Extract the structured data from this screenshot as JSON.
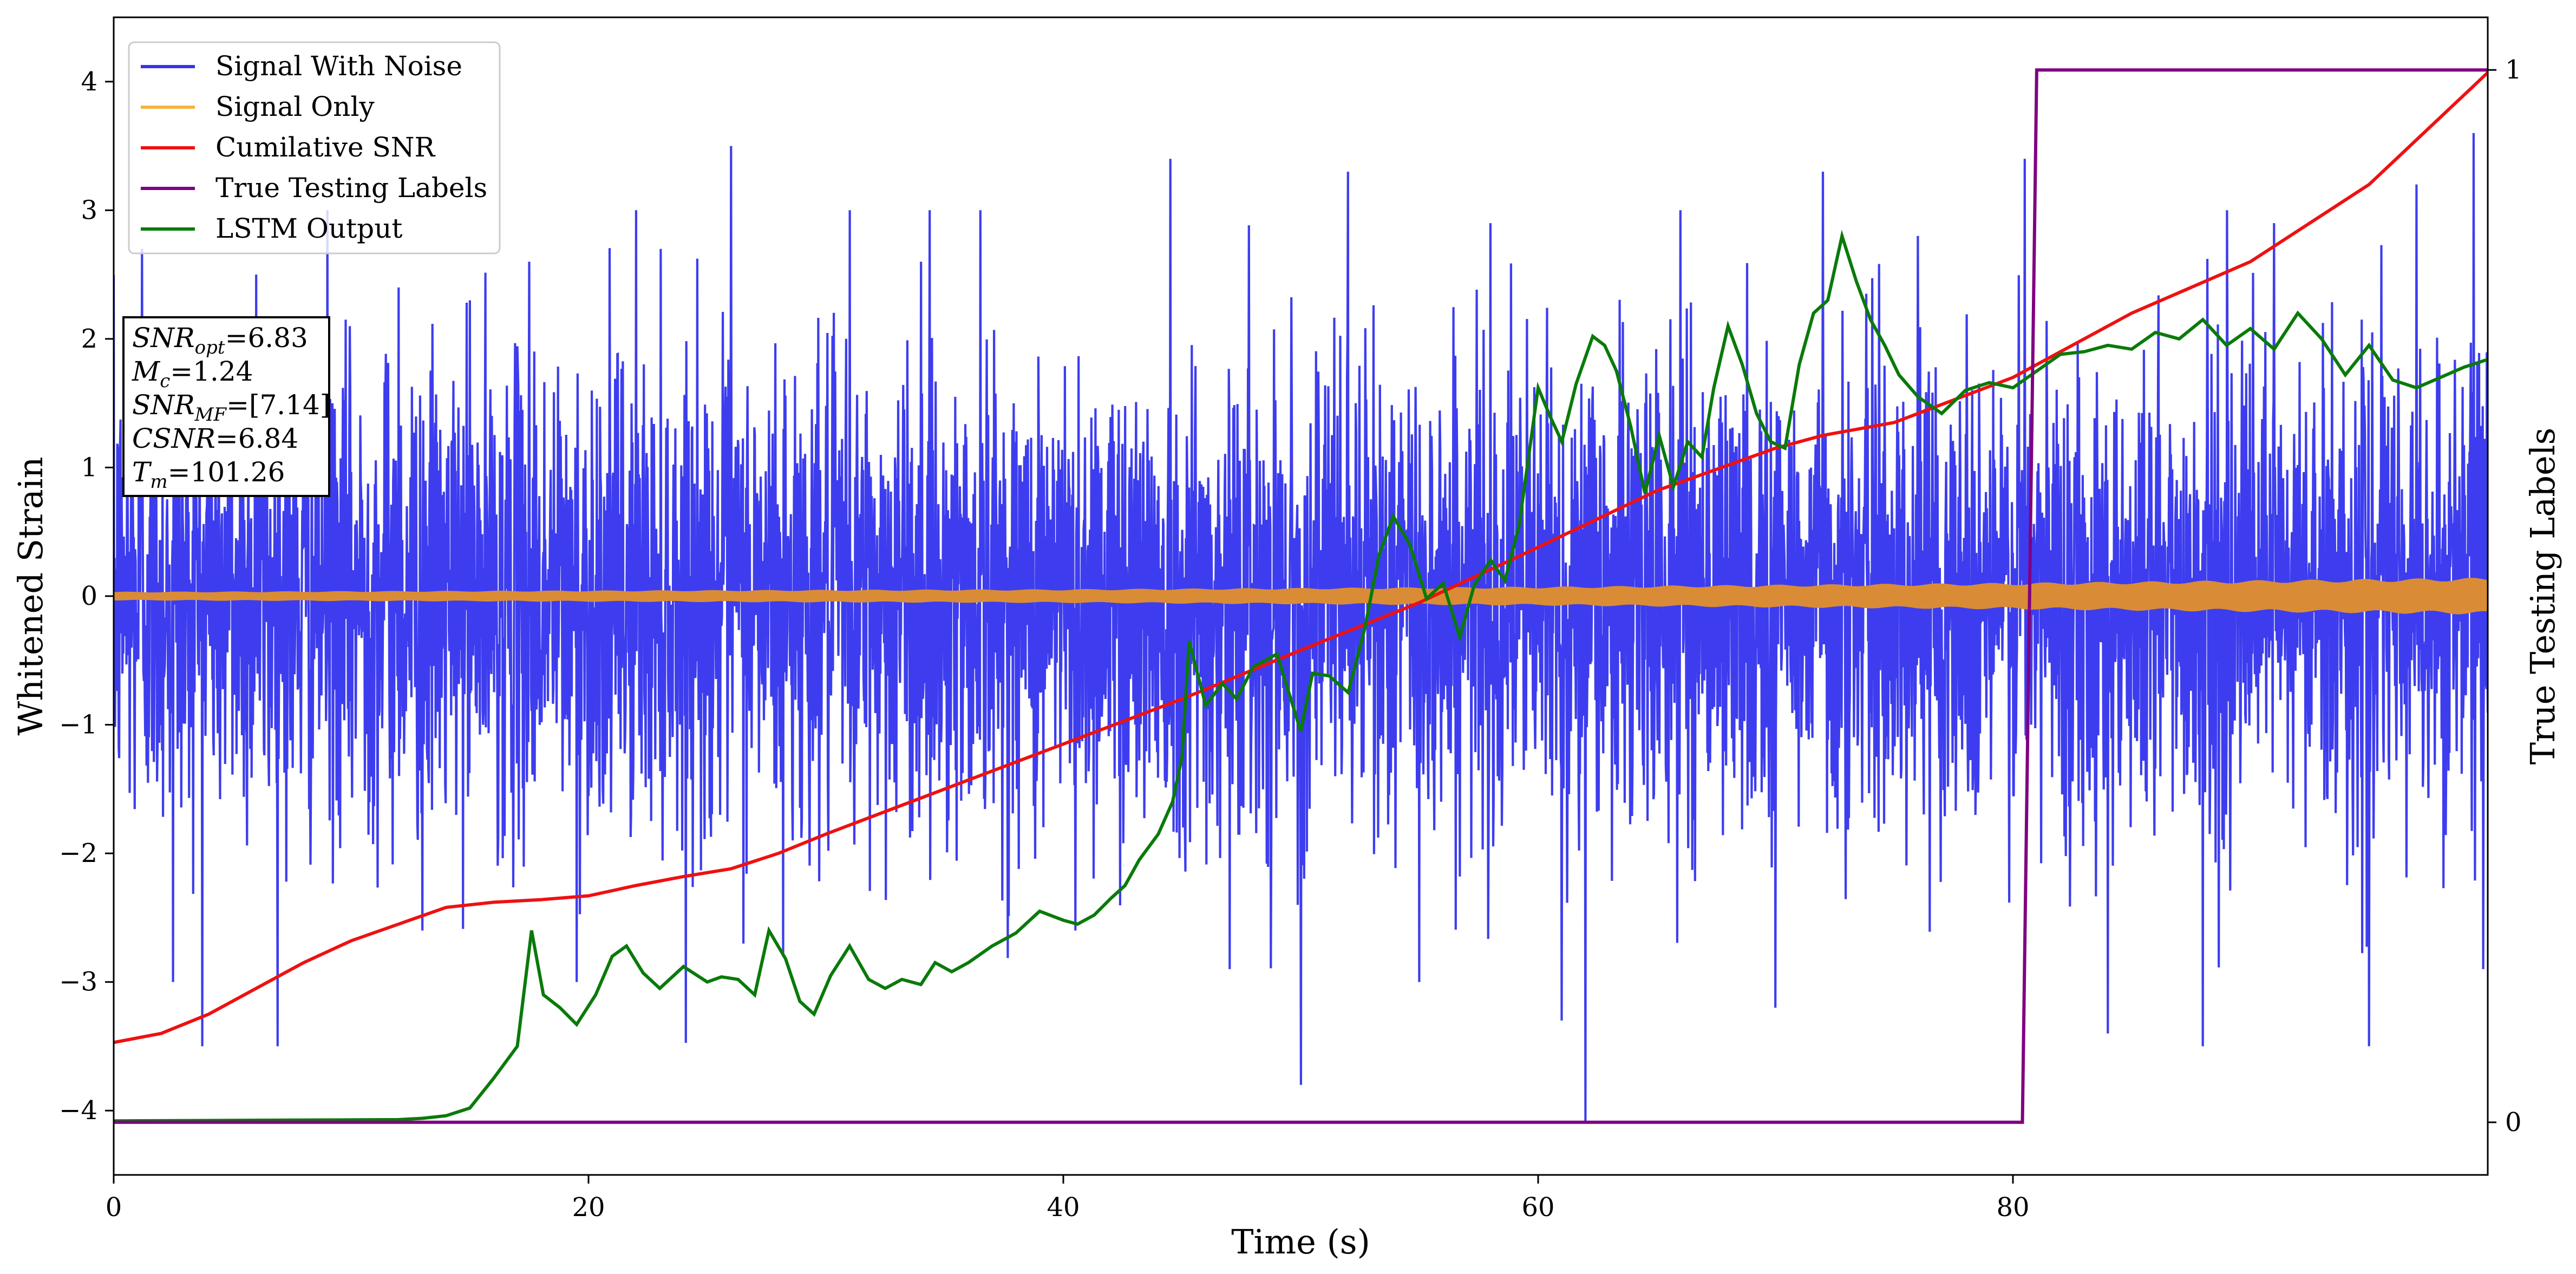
{
  "chart_data": {
    "type": "line",
    "xlabel": "Time (s)",
    "ylabel": "Whitened Strain",
    "y2label": "True Testing Labels",
    "xlim": [
      0,
      100
    ],
    "ylim": [
      -4.5,
      4.5
    ],
    "y2lim": [
      -0.05,
      1.05
    ],
    "grid": false,
    "legend_position": "top-left",
    "x_ticks": [
      "0",
      "20",
      "40",
      "60",
      "80"
    ],
    "x_tick_values": [
      0,
      20,
      40,
      60,
      80
    ],
    "y_ticks": [
      "−4",
      "−3",
      "−2",
      "−1",
      "0",
      "1",
      "2",
      "3",
      "4"
    ],
    "y_tick_values": [
      -4,
      -3,
      -2,
      -1,
      0,
      1,
      2,
      3,
      4
    ],
    "y2_ticks": [
      "0",
      "1"
    ],
    "y2_tick_values": [
      0,
      1
    ],
    "legend": [
      {
        "label": "Signal With Noise",
        "color": "#3333ee"
      },
      {
        "label": "Signal Only",
        "color": "#f5b342"
      },
      {
        "label": "Cumilative SNR",
        "color": "#ee1111"
      },
      {
        "label": "True Testing Labels",
        "color": "#800080"
      },
      {
        "label": "LSTM Output",
        "color": "#0a7a0a"
      }
    ],
    "info_box": [
      {
        "main": "SNR",
        "sub": "opt",
        "value": "=6.83"
      },
      {
        "main": "M",
        "sub": "c",
        "value": "=1.24"
      },
      {
        "main": "SNR",
        "sub": "MF",
        "value": "=[7.14]"
      },
      {
        "main": "CSNR",
        "sub": "",
        "value": "=6.84"
      },
      {
        "main": "T",
        "sub": "m",
        "value": "=101.26"
      }
    ],
    "series": [
      {
        "name": "Signal With Noise",
        "color": "#3333ee",
        "style": "noise",
        "x_range": [
          0,
          100
        ],
        "y_spread": 0.9,
        "y_extremes": [
          -4.1,
          3.6
        ],
        "spikes": [
          {
            "x": 1.2,
            "y": 2.7
          },
          {
            "x": 2.5,
            "y": -3.0
          },
          {
            "x": 6.0,
            "y": 2.5
          },
          {
            "x": 9.0,
            "y": 3.0
          },
          {
            "x": 12.0,
            "y": 2.4
          },
          {
            "x": 13.0,
            "y": -2.6
          },
          {
            "x": 15.0,
            "y": 2.3
          },
          {
            "x": 17.5,
            "y": 2.6
          },
          {
            "x": 19.5,
            "y": -3.0
          },
          {
            "x": 22.0,
            "y": 3.0
          },
          {
            "x": 26.0,
            "y": 3.5
          },
          {
            "x": 28.2,
            "y": -2.8
          },
          {
            "x": 31.0,
            "y": 3.0
          },
          {
            "x": 34.0,
            "y": 2.6
          },
          {
            "x": 36.5,
            "y": 3.0
          },
          {
            "x": 40.5,
            "y": -2.6
          },
          {
            "x": 44.5,
            "y": 3.4
          },
          {
            "x": 47.0,
            "y": -2.9
          },
          {
            "x": 50.0,
            "y": -3.8
          },
          {
            "x": 52.0,
            "y": 3.3
          },
          {
            "x": 55.0,
            "y": -3.0
          },
          {
            "x": 58.0,
            "y": 2.9
          },
          {
            "x": 61.0,
            "y": -3.3
          },
          {
            "x": 62.0,
            "y": -4.1
          },
          {
            "x": 66.0,
            "y": 3.0
          },
          {
            "x": 70.0,
            "y": -3.2
          },
          {
            "x": 72.0,
            "y": 3.3
          },
          {
            "x": 76.0,
            "y": 2.8
          },
          {
            "x": 80.5,
            "y": 3.4
          },
          {
            "x": 84.0,
            "y": -3.4
          },
          {
            "x": 88.0,
            "y": -3.5
          },
          {
            "x": 91.0,
            "y": 2.9
          },
          {
            "x": 95.0,
            "y": -3.5
          },
          {
            "x": 97.0,
            "y": 3.2
          },
          {
            "x": 99.4,
            "y": 3.6
          },
          {
            "x": 99.8,
            "y": -2.9
          }
        ]
      },
      {
        "name": "Signal Only",
        "color": "#f5b342",
        "style": "band",
        "x": [
          0,
          20,
          40,
          60,
          80,
          100
        ],
        "amplitude": [
          0.03,
          0.04,
          0.05,
          0.07,
          0.1,
          0.14
        ]
      },
      {
        "name": "Cumilative SNR",
        "color": "#ee1111",
        "x": [
          0,
          2,
          4,
          6,
          8,
          10,
          12,
          14,
          16,
          18,
          20,
          22,
          24,
          26,
          28,
          30,
          35,
          40,
          45,
          50,
          55,
          60,
          65,
          70,
          72,
          75,
          80,
          85,
          90,
          95,
          100
        ],
        "y": [
          -3.47,
          -3.4,
          -3.25,
          -3.05,
          -2.85,
          -2.68,
          -2.55,
          -2.42,
          -2.38,
          -2.36,
          -2.33,
          -2.25,
          -2.18,
          -2.12,
          -2.0,
          -1.85,
          -1.5,
          -1.15,
          -0.8,
          -0.42,
          -0.05,
          0.38,
          0.82,
          1.15,
          1.25,
          1.35,
          1.7,
          2.2,
          2.6,
          3.2,
          4.07
        ]
      },
      {
        "name": "True Testing Labels",
        "color": "#800080",
        "axis": "right",
        "x": [
          0,
          80.4,
          81.0,
          100
        ],
        "y": [
          0,
          0,
          1,
          1
        ]
      },
      {
        "name": "LSTM Output",
        "color": "#0a7a0a",
        "x": [
          0,
          12,
          13,
          14,
          15,
          16,
          17,
          17.6,
          18.1,
          18.8,
          19.5,
          20.3,
          21.0,
          21.6,
          22.3,
          23.0,
          24.0,
          25.0,
          25.6,
          26.3,
          27.0,
          27.6,
          28.3,
          28.9,
          29.5,
          30.2,
          31.0,
          31.8,
          32.5,
          33.2,
          34.0,
          34.6,
          35.3,
          36.0,
          37.0,
          38.0,
          39.0,
          40.0,
          40.6,
          41.3,
          42.0,
          42.6,
          43.2,
          44.0,
          44.6,
          45.0,
          45.3,
          46.0,
          46.7,
          47.3,
          48.0,
          49.0,
          50.0,
          50.5,
          51.2,
          52.0,
          52.7,
          53.3,
          53.9,
          54.6,
          55.3,
          56.0,
          56.7,
          57.3,
          58.0,
          58.6,
          59.2,
          60.0,
          60.5,
          61.0,
          61.6,
          62.3,
          62.8,
          63.3,
          63.9,
          64.5,
          65.1,
          65.7,
          66.3,
          66.9,
          67.4,
          68.0,
          68.6,
          69.2,
          69.8,
          70.4,
          71.0,
          71.6,
          72.2,
          72.8,
          73.4,
          74.0,
          74.6,
          75.2,
          76.0,
          77.0,
          78.0,
          79.0,
          80.0,
          81.0,
          82.0,
          83.0,
          84.0,
          85.0,
          86.0,
          87.0,
          88.0,
          89.0,
          90.0,
          91.0,
          92.0,
          93.0,
          94.0,
          95.0,
          96.0,
          97.0,
          98.0,
          99.0,
          100
        ],
        "y": [
          -4.08,
          -4.07,
          -4.06,
          -4.04,
          -3.98,
          -3.75,
          -3.5,
          -2.6,
          -3.1,
          -3.2,
          -3.33,
          -3.1,
          -2.8,
          -2.72,
          -2.93,
          -3.05,
          -2.88,
          -3.0,
          -2.96,
          -2.98,
          -3.1,
          -2.6,
          -2.82,
          -3.15,
          -3.25,
          -2.95,
          -2.72,
          -2.98,
          -3.05,
          -2.98,
          -3.02,
          -2.85,
          -2.92,
          -2.85,
          -2.72,
          -2.62,
          -2.45,
          -2.52,
          -2.55,
          -2.48,
          -2.35,
          -2.25,
          -2.05,
          -1.85,
          -1.6,
          -1.25,
          -0.35,
          -0.85,
          -0.68,
          -0.8,
          -0.55,
          -0.45,
          -1.05,
          -0.6,
          -0.62,
          -0.75,
          -0.25,
          0.32,
          0.62,
          0.4,
          -0.02,
          0.1,
          -0.32,
          0.08,
          0.28,
          0.12,
          0.55,
          1.62,
          1.4,
          1.2,
          1.65,
          2.02,
          1.95,
          1.75,
          1.32,
          0.8,
          1.25,
          0.85,
          1.2,
          1.08,
          1.62,
          2.1,
          1.8,
          1.42,
          1.2,
          1.15,
          1.8,
          2.2,
          2.3,
          2.8,
          2.45,
          2.15,
          1.95,
          1.72,
          1.55,
          1.42,
          1.6,
          1.66,
          1.62,
          1.75,
          1.88,
          1.9,
          1.95,
          1.92,
          2.05,
          2.0,
          2.15,
          1.95,
          2.08,
          1.92,
          2.2,
          2.0,
          1.72,
          1.95,
          1.68,
          1.62,
          1.7,
          1.78,
          1.84
        ]
      }
    ]
  }
}
